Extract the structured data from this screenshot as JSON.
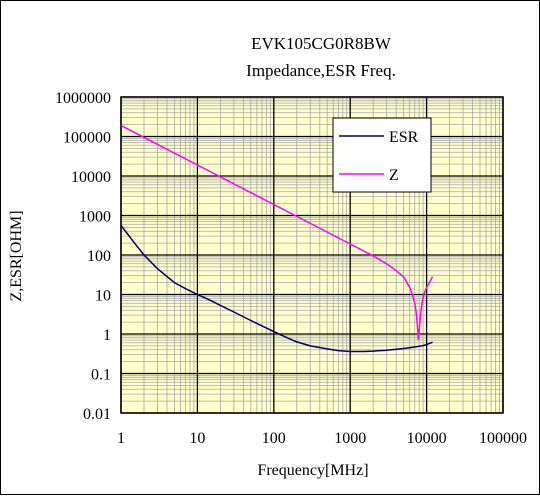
{
  "chart_data": {
    "type": "line",
    "title": "EVK105CG0R8BW",
    "subtitle": "Impedance,ESR Freq.",
    "xlabel": "Frequency[MHz]",
    "ylabel": "Z,ESR[OHM]",
    "x_scale": "log",
    "y_scale": "log",
    "xlim": [
      1,
      100000
    ],
    "ylim": [
      0.01,
      1000000
    ],
    "x_ticks": [
      "1",
      "10",
      "100",
      "1000",
      "10000",
      "100000"
    ],
    "y_ticks": [
      "0.01",
      "0.1",
      "1",
      "10",
      "100",
      "1000",
      "10000",
      "100000",
      "1000000"
    ],
    "grid": true,
    "plot_background": "#FFFFCC",
    "legend_position": "top-right",
    "series": [
      {
        "name": "ESR",
        "color": "#000066",
        "x": [
          1,
          1.5,
          2,
          3,
          5,
          7,
          10,
          15,
          20,
          30,
          50,
          70,
          100,
          150,
          200,
          300,
          500,
          700,
          1000,
          1500,
          2000,
          3000,
          4000,
          5000,
          6000,
          7000,
          8000,
          9000,
          10000,
          12000
        ],
        "y": [
          560,
          200,
          100,
          45,
          20,
          14,
          10,
          7,
          5.3,
          3.6,
          2.2,
          1.6,
          1.15,
          0.8,
          0.63,
          0.5,
          0.42,
          0.38,
          0.36,
          0.36,
          0.37,
          0.39,
          0.41,
          0.43,
          0.45,
          0.47,
          0.49,
          0.51,
          0.54,
          0.62
        ]
      },
      {
        "name": "Z",
        "color": "#FF00FF",
        "x": [
          1,
          10,
          100,
          1000,
          2000,
          3000,
          4000,
          5000,
          6000,
          6500,
          7000,
          7300,
          7600,
          7800,
          8000,
          8300,
          8700,
          9200,
          10000,
          11000,
          12000
        ],
        "y": [
          190000,
          19000,
          1900,
          190,
          95,
          60,
          40,
          28,
          15,
          10,
          6,
          3.5,
          1.5,
          0.7,
          1.2,
          3,
          6,
          10,
          15,
          21,
          28
        ]
      }
    ]
  }
}
